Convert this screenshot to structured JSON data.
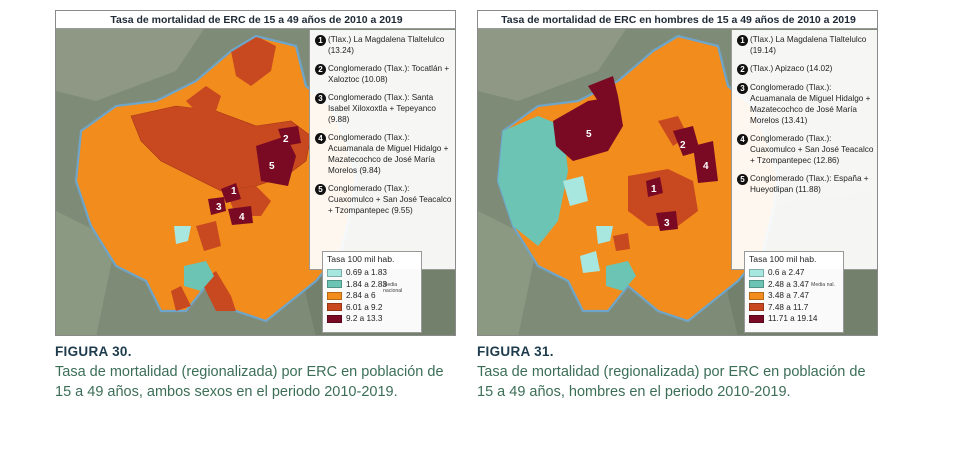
{
  "figures": [
    {
      "map_title": "Tasa de mortalidad de ERC de 15 a 49 años de 2010 a 2019",
      "callouts": [
        {
          "num": "1",
          "text": "(Tlax.) La Magdalena Tlaltelulco (13.24)"
        },
        {
          "num": "2",
          "text": "Conglomerado (Tlax.): Tocatlán + Xaloztoc (10.08)"
        },
        {
          "num": "3",
          "text": "Conglomerado (Tlax.): Santa Isabel Xiloxoxtla + Tepeyanco (9.88)"
        },
        {
          "num": "4",
          "text": "Conglomerado (Tlax.): Acuamanala de Miguel Hidalgo + Mazatecochco de José María Morelos (9.84)"
        },
        {
          "num": "5",
          "text": "Conglomerado (Tlax.): Cuaxomulco + San José Teacalco + Tzompantepec (9.55)"
        }
      ],
      "legend": {
        "title": "Tasa 100 mil hab.",
        "items": [
          {
            "label": "0.69 a 1.83",
            "color": "#a8e6e0"
          },
          {
            "label": "1.84 a 2.83",
            "color": "#6cc4b4"
          },
          {
            "label": "2.84 a 6",
            "color": "#f28c1c"
          },
          {
            "label": "6.01 a 9.2",
            "color": "#c8481f"
          },
          {
            "label": "9.2 a 13.3",
            "color": "#7a0a24"
          }
        ],
        "media_note": "Media nacional"
      },
      "fig_label": "FIGURA 30.",
      "caption": "Tasa de mortalidad (regionalizada) por ERC en población de 15 a 49 años, ambos sexos en el periodo 2010-2019."
    },
    {
      "map_title": "Tasa de mortalidad de ERC en hombres de 15 a 49 años de 2010 a 2019",
      "callouts": [
        {
          "num": "1",
          "text": "(Tlax.) La Magdalena Tlaltelulco (19.14)"
        },
        {
          "num": "2",
          "text": "(Tlax.) Apizaco (14.02)"
        },
        {
          "num": "3",
          "text": "Conglomerado (Tlax.): Acuamanala de Miguel Hidalgo + Mazatecochco de José María Morelos (13.41)"
        },
        {
          "num": "4",
          "text": "Conglomerado (Tlax.): Cuaxomulco + San José Teacalco + Tzompantepec (12.86)"
        },
        {
          "num": "5",
          "text": "Conglomerado (Tlax.): España + Hueyotlipan (11.88)"
        }
      ],
      "legend": {
        "title": "Tasa 100 mil hab.",
        "items": [
          {
            "label": "0.6 a 2.47",
            "color": "#a8e6e0"
          },
          {
            "label": "2.48 a 3.47",
            "color": "#6cc4b4"
          },
          {
            "label": "3.48 a 7.47",
            "color": "#f28c1c"
          },
          {
            "label": "7.48 a 11.7",
            "color": "#c8481f"
          },
          {
            "label": "11.71 a 19.14",
            "color": "#7a0a24"
          }
        ],
        "media_note": "Media nal."
      },
      "fig_label": "FIGURA 31.",
      "caption": "Tasa de mortalidad (regionalizada) por ERC en población de 15 a 49 años, hombres en el periodo 2010-2019."
    }
  ]
}
